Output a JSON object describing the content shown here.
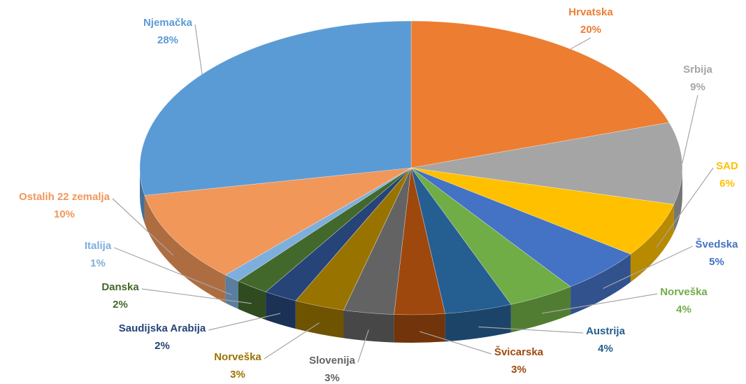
{
  "chart_data": {
    "type": "pie",
    "style": "3d",
    "categories": [
      "Hrvatska",
      "Srbija",
      "SAD",
      "Švedska",
      "Norveška",
      "Austrija",
      "Švicarska",
      "Slovenija",
      "Norveška",
      "Saudijska Arabija",
      "Danska",
      "Italija",
      "Ostalih 22 zemalja",
      "Njemačka"
    ],
    "values": [
      20,
      9,
      6,
      5,
      4,
      4,
      3,
      3,
      3,
      2,
      2,
      1,
      10,
      28
    ],
    "value_labels": [
      "20%",
      "9%",
      "6%",
      "5%",
      "4%",
      "4%",
      "3%",
      "3%",
      "3%",
      "2%",
      "2%",
      "1%",
      "10%",
      "28%"
    ],
    "colors": [
      "#ED7D31",
      "#A5A5A5",
      "#FFC000",
      "#4472C4",
      "#70AD47",
      "#255E91",
      "#9E480E",
      "#636363",
      "#997300",
      "#264478",
      "#43682B",
      "#7CAFDD",
      "#F1975A",
      "#5B9BD5"
    ]
  }
}
